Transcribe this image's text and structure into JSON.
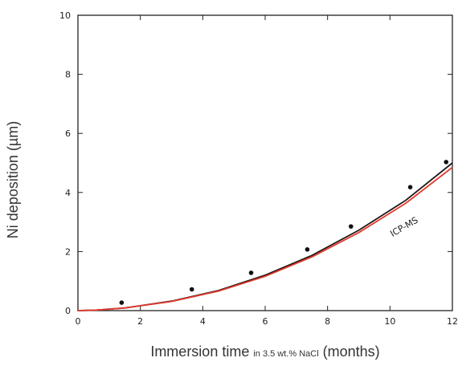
{
  "chart_data": {
    "type": "scatter",
    "xlabel": {
      "main": "Immersion time ",
      "small": "in 3.5 wt.% NaCl",
      "unit": " (months)"
    },
    "ylabel": "Ni deposition (µm)",
    "xlim": [
      0,
      12
    ],
    "ylim": [
      0,
      10
    ],
    "x_ticks": [
      0,
      2,
      4,
      6,
      8,
      10,
      12
    ],
    "y_ticks": [
      0,
      2,
      4,
      6,
      8,
      10
    ],
    "series": [
      {
        "kind": "points",
        "color": "#111111",
        "x": [
          1.4,
          3.65,
          5.55,
          7.35,
          8.75,
          10.65,
          11.8
        ],
        "y": [
          0.27,
          0.72,
          1.28,
          2.07,
          2.85,
          4.18,
          5.03
        ]
      },
      {
        "kind": "line",
        "color": "#1a1a1a",
        "x": [
          0,
          0.6,
          1.5,
          3,
          4.5,
          6,
          7.5,
          9,
          10.5,
          12
        ],
        "y": [
          0,
          0.02,
          0.09,
          0.32,
          0.68,
          1.2,
          1.87,
          2.72,
          3.73,
          5.0
        ]
      },
      {
        "kind": "line",
        "color": "#e53a2f",
        "x": [
          0,
          0.6,
          1.5,
          3,
          4.5,
          6,
          7.5,
          9,
          10.5,
          12
        ],
        "y": [
          0,
          0.02,
          0.09,
          0.31,
          0.66,
          1.16,
          1.82,
          2.64,
          3.63,
          4.85
        ]
      }
    ],
    "annotations": [
      {
        "text": "ICP-MS",
        "x": 10.5,
        "y": 2.75
      }
    ],
    "grid": false
  }
}
